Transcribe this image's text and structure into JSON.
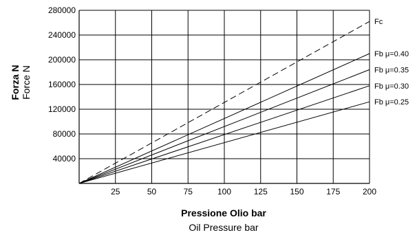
{
  "chart_data": {
    "type": "line",
    "x": [
      0,
      200
    ],
    "series": [
      {
        "name": "Fc",
        "values": [
          0,
          262000
        ],
        "style": "dashed"
      },
      {
        "name": "Fb μ=0.40",
        "values": [
          0,
          210000
        ],
        "style": "solid"
      },
      {
        "name": "Fb μ=0.35",
        "values": [
          0,
          184000
        ],
        "style": "solid"
      },
      {
        "name": "Fb μ=0.30",
        "values": [
          0,
          158000
        ],
        "style": "solid"
      },
      {
        "name": "Fb μ=0.25",
        "values": [
          0,
          132000
        ],
        "style": "solid"
      }
    ],
    "xticks": [
      25,
      50,
      75,
      100,
      125,
      150,
      175,
      200
    ],
    "yticks": [
      40000,
      80000,
      120000,
      160000,
      200000,
      240000,
      280000
    ],
    "xlim": [
      0,
      200
    ],
    "ylim": [
      0,
      280000
    ],
    "grid": true,
    "xlabel_line1": "Pressione Olio  bar",
    "xlabel_line2": "Oil Pressure  bar",
    "ylabel_line1": "Forza  N",
    "ylabel_line2": "Force  N",
    "colors": {
      "line": "#000000",
      "grid": "#000000",
      "background": "#ffffff"
    }
  }
}
